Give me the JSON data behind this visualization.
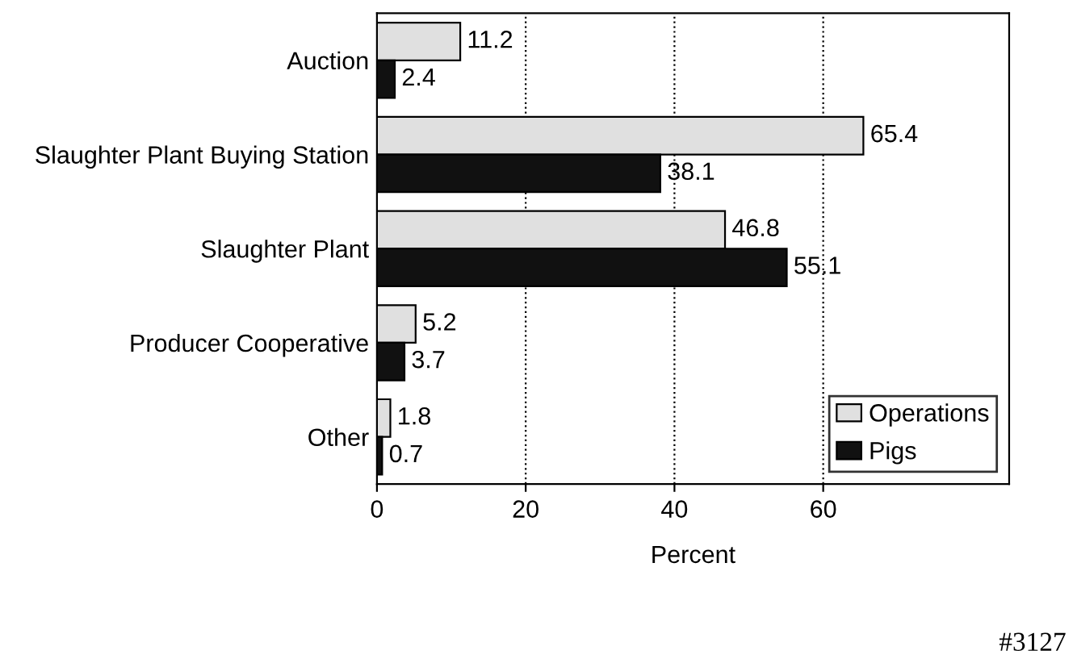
{
  "chart_data": {
    "type": "bar",
    "orientation": "horizontal",
    "xlabel": "Percent",
    "categories": [
      "Auction",
      "Slaughter Plant Buying Station",
      "Slaughter Plant",
      "Producer Cooperative",
      "Other"
    ],
    "series": [
      {
        "name": "Operations",
        "color": "#e0e0e0",
        "values": [
          11.2,
          65.4,
          46.8,
          5.2,
          1.8
        ]
      },
      {
        "name": "Pigs",
        "color": "#111111",
        "values": [
          2.4,
          38.1,
          55.1,
          3.7,
          0.7
        ]
      }
    ],
    "xlim": [
      0,
      85
    ],
    "xticks": [
      0,
      20,
      40,
      60
    ],
    "grid": "x",
    "legend": "bottom right",
    "data_labels": true,
    "annotations": [
      "#3127"
    ]
  }
}
